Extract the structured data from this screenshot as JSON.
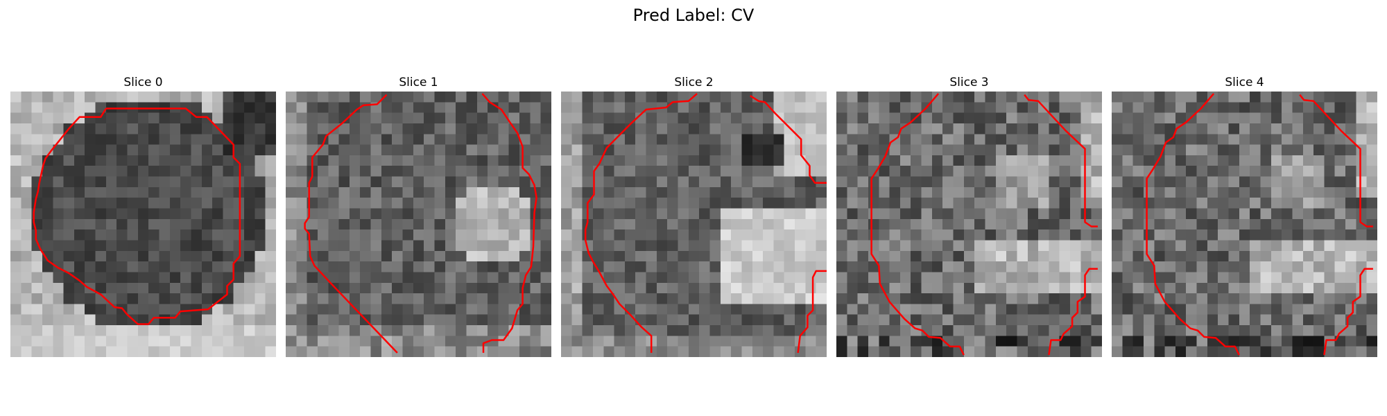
{
  "figure": {
    "title": "Pred Label: CV"
  },
  "panels": [
    {
      "title": "Slice 0"
    },
    {
      "title": "Slice 1"
    },
    {
      "title": "Slice 2"
    },
    {
      "title": "Slice 3"
    },
    {
      "title": "Slice 4"
    }
  ],
  "colors": {
    "contour": "#ff0000",
    "background": "#ffffff"
  }
}
